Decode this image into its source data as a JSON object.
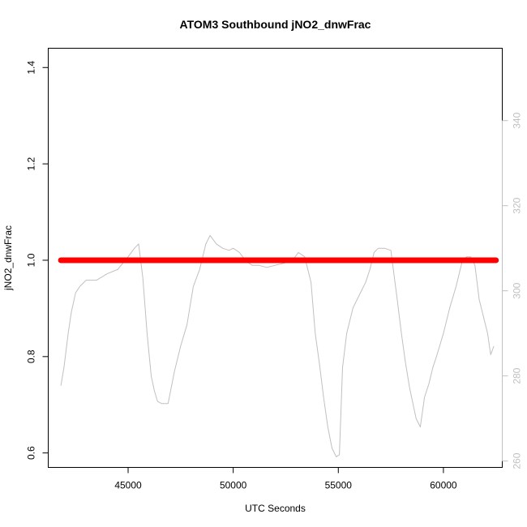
{
  "chart_data": {
    "type": "line",
    "title": "ATOM3 Southbound jNO2_dnwFrac",
    "xlabel": "UTC Seconds",
    "ylabel": "jNO2_dnwFrac",
    "xlim": [
      41200,
      62800
    ],
    "ylim": [
      0.57,
      1.44
    ],
    "x_ticks": [
      45000,
      50000,
      55000,
      60000
    ],
    "x_tick_labels": [
      "45000",
      "50000",
      "55000",
      "60000"
    ],
    "y_ticks": [
      0.6,
      0.8,
      1.0,
      1.2,
      1.4
    ],
    "y_tick_labels": [
      "0.6",
      "0.8",
      "1.0",
      "1.2",
      "1.4"
    ],
    "y2lim": [
      258.5,
      357
    ],
    "y2_ticks": [
      260,
      280,
      300,
      320,
      340
    ],
    "y2_tick_labels": [
      "260",
      "280",
      "300",
      "320",
      "340"
    ],
    "grid": false,
    "series": [
      {
        "axis": "left",
        "color": "#ff0000",
        "style": "thick-points",
        "x": [
          41800,
          62500
        ],
        "y": [
          1.0,
          1.0
        ]
      },
      {
        "axis": "right",
        "color": "#c0c0c0",
        "style": "thin-line",
        "x": [
          41800,
          41950,
          42150,
          42300,
          42500,
          42700,
          43000,
          43500,
          44000,
          44500,
          45000,
          45300,
          45500,
          45700,
          45900,
          46100,
          46250,
          46400,
          46600,
          46900,
          47200,
          47500,
          47800,
          48100,
          48400,
          48700,
          48900,
          49200,
          49500,
          49800,
          50000,
          50300,
          50600,
          50900,
          51200,
          51600,
          52000,
          52400,
          52800,
          53100,
          53400,
          53700,
          53900,
          54100,
          54300,
          54500,
          54700,
          54900,
          55050,
          55200,
          55400,
          55700,
          56000,
          56300,
          56500,
          56700,
          56900,
          57200,
          57500,
          57800,
          58000,
          58200,
          58400,
          58700,
          58900,
          59100,
          59300,
          59500,
          59700,
          60000,
          60300,
          60600,
          60900,
          61100,
          61300,
          61500,
          61700,
          61900,
          62100,
          62250,
          62400
        ],
        "y": [
          277.7,
          282,
          290,
          295,
          299.5,
          301,
          302.5,
          302.5,
          304,
          305,
          308,
          310,
          311,
          303,
          290,
          280,
          276.5,
          274,
          273.5,
          273.5,
          281,
          287,
          292,
          301,
          305,
          311,
          313,
          311,
          310,
          309.5,
          310,
          309,
          307,
          306,
          306,
          305.5,
          306,
          306.5,
          307,
          309,
          308,
          302,
          290,
          283,
          275,
          268,
          263,
          261,
          261.5,
          282,
          290,
          296,
          299,
          302,
          305,
          309,
          310,
          310,
          309.5,
          298,
          290,
          283,
          277,
          270,
          268,
          275,
          278,
          282,
          285,
          290,
          296,
          301,
          307,
          308,
          308,
          306,
          298,
          294,
          290,
          285,
          287
        ]
      }
    ]
  }
}
